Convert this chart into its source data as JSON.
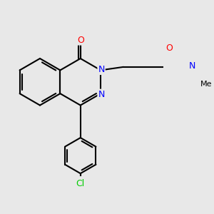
{
  "background_color": "#e8e8e8",
  "bond_color": "#000000",
  "N_color": "#0000ff",
  "O_color": "#ff0000",
  "Cl_color": "#00cc00",
  "line_width": 1.5,
  "figsize": [
    3.0,
    3.0
  ],
  "dpi": 100,
  "xlim": [
    -2.3,
    2.7
  ],
  "ylim": [
    -2.8,
    1.5
  ]
}
